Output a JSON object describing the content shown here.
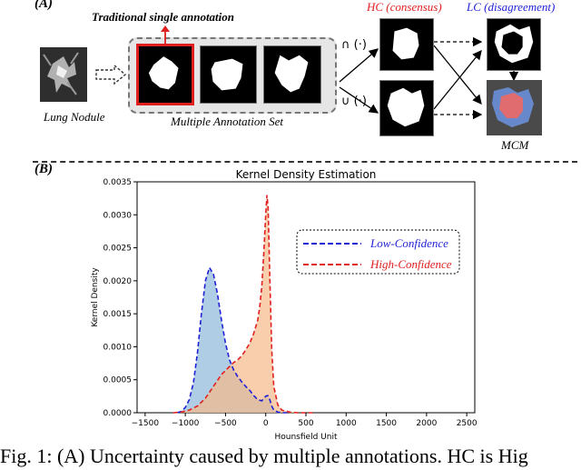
{
  "panel_a": {
    "label": "(A)",
    "traditional_title": "Traditional single annotation",
    "lung_label": "Lung Nodule",
    "multi_label": "Multiple Annotation Set",
    "hc_title": "HC (consensus)",
    "lc_title": "LC (disagreement)",
    "mcm_label": "MCM",
    "intersect_op": "∩ (·)",
    "union_op": "∪ (·)"
  },
  "panel_b": {
    "label": "(B)"
  },
  "chart_data": {
    "type": "area",
    "title": "Kernel Density Estimation",
    "xlabel": "Hounsfield Unit",
    "ylabel": "Kernel Density",
    "xlim": [
      -1600,
      2600
    ],
    "ylim": [
      0,
      0.0035
    ],
    "xticks": [
      "−1500",
      "−1000",
      "−500",
      "0",
      "500",
      "1000",
      "1500",
      "2000",
      "2500"
    ],
    "yticks": [
      "0.0000",
      "0.0005",
      "0.0010",
      "0.0015",
      "0.0020",
      "0.0025",
      "0.0030",
      "0.0035"
    ],
    "legend_position": "upper-right",
    "series": [
      {
        "name": "Low-Confidence",
        "color": "#1f1fd6",
        "fill": "#8db8d9",
        "x": [
          -1100,
          -1050,
          -1000,
          -950,
          -900,
          -850,
          -800,
          -750,
          -700,
          -650,
          -600,
          -550,
          -500,
          -450,
          -400,
          -350,
          -300,
          -250,
          -200,
          -150,
          -100,
          -50,
          0,
          25,
          50,
          75,
          100,
          150,
          200,
          300
        ],
        "y": [
          0,
          2e-05,
          8e-05,
          0.0002,
          0.00045,
          0.0009,
          0.0015,
          0.002,
          0.0022,
          0.0021,
          0.0018,
          0.0014,
          0.00105,
          0.0008,
          0.00065,
          0.00055,
          0.00047,
          0.0004,
          0.00034,
          0.00026,
          0.0002,
          0.00018,
          0.00025,
          0.00026,
          0.0002,
          0.0001,
          4e-05,
          1e-05,
          0,
          0
        ]
      },
      {
        "name": "High-Confidence",
        "color": "#e01f1f",
        "fill": "#f7b98a",
        "x": [
          -1150,
          -1050,
          -950,
          -850,
          -750,
          -650,
          -550,
          -450,
          -400,
          -350,
          -300,
          -250,
          -200,
          -150,
          -100,
          -75,
          -50,
          -25,
          0,
          15,
          30,
          50,
          75,
          100,
          150,
          200,
          300,
          400,
          600
        ],
        "y": [
          0,
          1e-05,
          4e-05,
          0.0001,
          0.00022,
          0.0004,
          0.00058,
          0.0007,
          0.00076,
          0.0008,
          0.00086,
          0.00095,
          0.00105,
          0.0012,
          0.0014,
          0.0016,
          0.0019,
          0.0024,
          0.003,
          0.0033,
          0.0031,
          0.0021,
          0.00095,
          0.0004,
          0.00012,
          4e-05,
          1e-05,
          0,
          0
        ]
      }
    ]
  }
}
